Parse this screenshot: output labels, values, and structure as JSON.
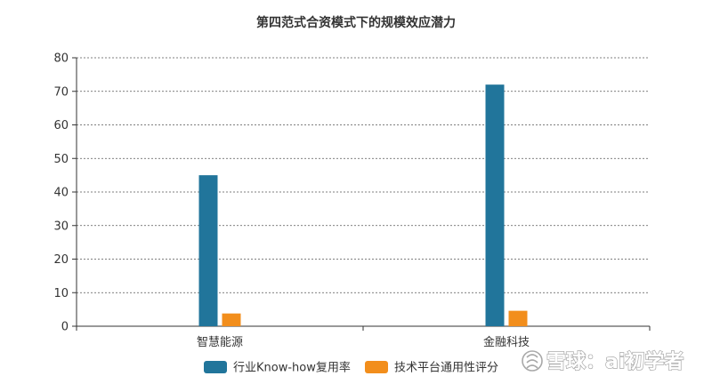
{
  "chart_data": {
    "type": "bar",
    "title": "第四范式合资模式下的规模效应潜力",
    "categories": [
      "智慧能源",
      "金融科技"
    ],
    "series": [
      {
        "name": "行业Know-how复用率",
        "color": "#21759b",
        "values": [
          45,
          72
        ]
      },
      {
        "name": "技术平台通用性评分",
        "color": "#f28e1c",
        "values": [
          3.8,
          4.6
        ]
      }
    ],
    "ylim": [
      0,
      80
    ],
    "yticks": [
      0,
      10,
      20,
      30,
      40,
      50,
      60,
      70,
      80
    ],
    "grid": "horizontal-dashed",
    "legend": "bottom-center"
  },
  "watermark": {
    "text": "雪球：ai初学者"
  }
}
